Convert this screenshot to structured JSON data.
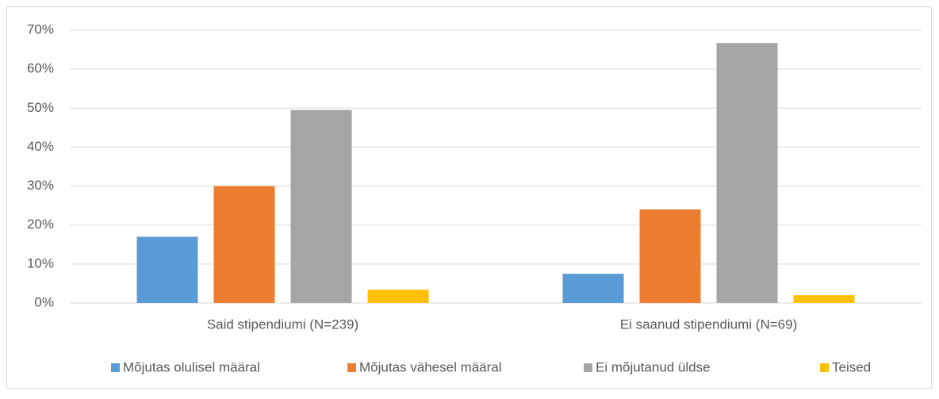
{
  "chart_data": {
    "type": "bar",
    "categories": [
      "Said stipendiumi (N=239)",
      "Ei saanud stipendiumi (N=69)"
    ],
    "series": [
      {
        "name": "Mõjutas olulisel määral",
        "color": "#5b9bd5",
        "values": [
          17,
          7.5
        ]
      },
      {
        "name": "Mõjutas vähesel määral",
        "color": "#ed7d31",
        "values": [
          30,
          24
        ]
      },
      {
        "name": "Ei mõjutanud üldse",
        "color": "#a5a5a5",
        "values": [
          49.5,
          66.7
        ]
      },
      {
        "name": "Teised",
        "color": "#ffc000",
        "values": [
          3.4,
          2
        ]
      }
    ],
    "ylim": [
      0,
      70
    ],
    "yticks": [
      {
        "value": 0,
        "label": "0%"
      },
      {
        "value": 10,
        "label": "10%"
      },
      {
        "value": 20,
        "label": "20%"
      },
      {
        "value": 30,
        "label": "30%"
      },
      {
        "value": 40,
        "label": "40%"
      },
      {
        "value": 50,
        "label": "50%"
      },
      {
        "value": 60,
        "label": "60%"
      },
      {
        "value": 70,
        "label": "70%"
      }
    ],
    "grid": true,
    "legend": "bottom"
  }
}
